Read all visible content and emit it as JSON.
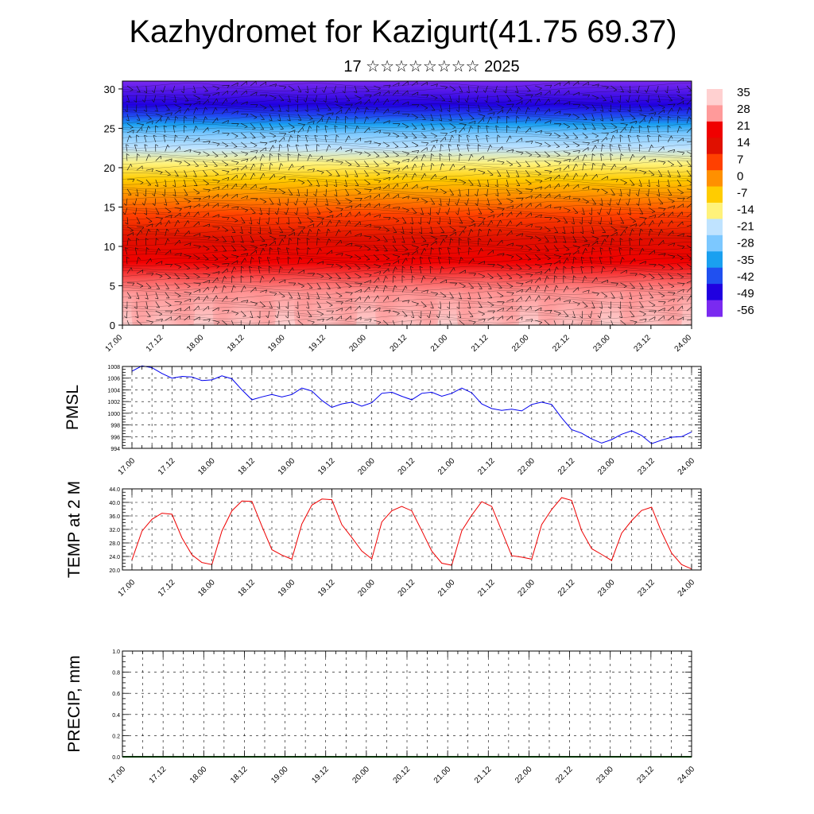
{
  "header": {
    "title": "Kazhydromet for Kazigurt(41.75 69.37)",
    "subtitle": "17 ☆☆☆☆☆☆☆☆ 2025"
  },
  "time_ticks": [
    "17.00",
    "17.12",
    "18.00",
    "18.12",
    "19.00",
    "19.12",
    "20.00",
    "20.12",
    "21.00",
    "21.12",
    "22.00",
    "22.12",
    "23.00",
    "23.12",
    "24.00"
  ],
  "chart_data": [
    {
      "type": "heatmap",
      "name": "vertical-cross-section",
      "ylim": [
        0,
        31
      ],
      "y_ticks": [
        "0",
        "5",
        "10",
        "15",
        "20",
        "25",
        "30"
      ],
      "colorbar_labels": [
        "35",
        "28",
        "21",
        "14",
        "7",
        "0",
        "-7",
        "-14",
        "-21",
        "-28",
        "-35",
        "-42",
        "-49",
        "-56"
      ],
      "colors": [
        "#ffd0d0",
        "#ff9a9a",
        "#f00000",
        "#e01000",
        "#ff4000",
        "#ff9000",
        "#ffcc00",
        "#fff27a",
        "#bfe3ff",
        "#7cc8ff",
        "#1aa0f0",
        "#2050f0",
        "#2000e0",
        "#7a2af0"
      ]
    },
    {
      "type": "line",
      "name": "PMSL",
      "ylabel": "PMSL",
      "ylim": [
        994,
        1008
      ],
      "y_ticks": [
        "1008",
        "1006",
        "1004",
        "1002",
        "1000",
        "998",
        "996",
        "994"
      ],
      "x": [
        0,
        3,
        6,
        9,
        12,
        15,
        18,
        21,
        24,
        27,
        30,
        33,
        36,
        39,
        42,
        45,
        48,
        51,
        54,
        57,
        60,
        63,
        66,
        69,
        72,
        75,
        78,
        81,
        84,
        87,
        90,
        93,
        96,
        99,
        102,
        105,
        108,
        111,
        114,
        117,
        120,
        123,
        126,
        129,
        132,
        135,
        138,
        141,
        144,
        147,
        150,
        153,
        156,
        159,
        162,
        165,
        168
      ],
      "values": [
        1007.2,
        1008.1,
        1007.8,
        1006.8,
        1006.0,
        1006.3,
        1006.2,
        1005.6,
        1005.7,
        1006.4,
        1005.9,
        1004.0,
        1002.3,
        1002.8,
        1003.2,
        1002.8,
        1003.2,
        1004.3,
        1003.8,
        1002.2,
        1001.0,
        1001.6,
        1001.9,
        1001.2,
        1001.8,
        1003.4,
        1003.6,
        1002.9,
        1002.3,
        1003.4,
        1003.6,
        1002.9,
        1003.4,
        1004.3,
        1003.5,
        1001.6,
        1000.8,
        1000.5,
        1000.7,
        1000.4,
        1001.5,
        1001.9,
        1001.5,
        999.2,
        997.2,
        996.6,
        995.6,
        994.9,
        995.5,
        996.4,
        997.0,
        996.2,
        994.8,
        995.4,
        995.9,
        996.0,
        996.8
      ],
      "color": "#0000ee"
    },
    {
      "type": "line",
      "name": "TEMP at 2 M",
      "ylabel": "TEMP at 2 M",
      "ylim": [
        20,
        44
      ],
      "y_ticks": [
        "44.0",
        "40.0",
        "36.0",
        "32.0",
        "28.0",
        "24.0",
        "20.0"
      ],
      "x": [
        0,
        3,
        6,
        9,
        12,
        15,
        18,
        21,
        24,
        27,
        30,
        33,
        36,
        39,
        42,
        45,
        48,
        51,
        54,
        57,
        60,
        63,
        66,
        69,
        72,
        75,
        78,
        81,
        84,
        87,
        90,
        93,
        96,
        99,
        102,
        105,
        108,
        111,
        114,
        117,
        120,
        123,
        126,
        129,
        132,
        135,
        138,
        141,
        144,
        147,
        150,
        153,
        156,
        159,
        162,
        165,
        168
      ],
      "values": [
        23.0,
        31.5,
        35.0,
        36.8,
        36.5,
        29.5,
        24.5,
        22.2,
        21.6,
        31.5,
        37.5,
        40.4,
        40.3,
        33.0,
        26.0,
        24.4,
        23.2,
        33.6,
        39.2,
        41.0,
        40.8,
        33.4,
        29.6,
        25.6,
        23.3,
        34.2,
        37.5,
        38.8,
        37.5,
        31.6,
        25.6,
        22.0,
        21.4,
        31.6,
        36.2,
        40.2,
        38.8,
        31.6,
        24.2,
        23.8,
        23.2,
        33.4,
        37.9,
        41.4,
        40.6,
        31.6,
        26.3,
        24.6,
        22.8,
        30.9,
        34.6,
        37.6,
        38.6,
        31.2,
        25.0,
        21.6,
        20.3
      ],
      "color": "#ee0000"
    },
    {
      "type": "line",
      "name": "PRECIP, mm",
      "ylabel": "PRECIP, mm",
      "ylim": [
        0,
        1
      ],
      "y_ticks": [
        "1.0",
        "0.8",
        "0.6",
        "0.4",
        "0.2",
        "0.0"
      ],
      "x": [
        0,
        168
      ],
      "values": [
        0,
        0
      ],
      "color": "#006400"
    }
  ]
}
